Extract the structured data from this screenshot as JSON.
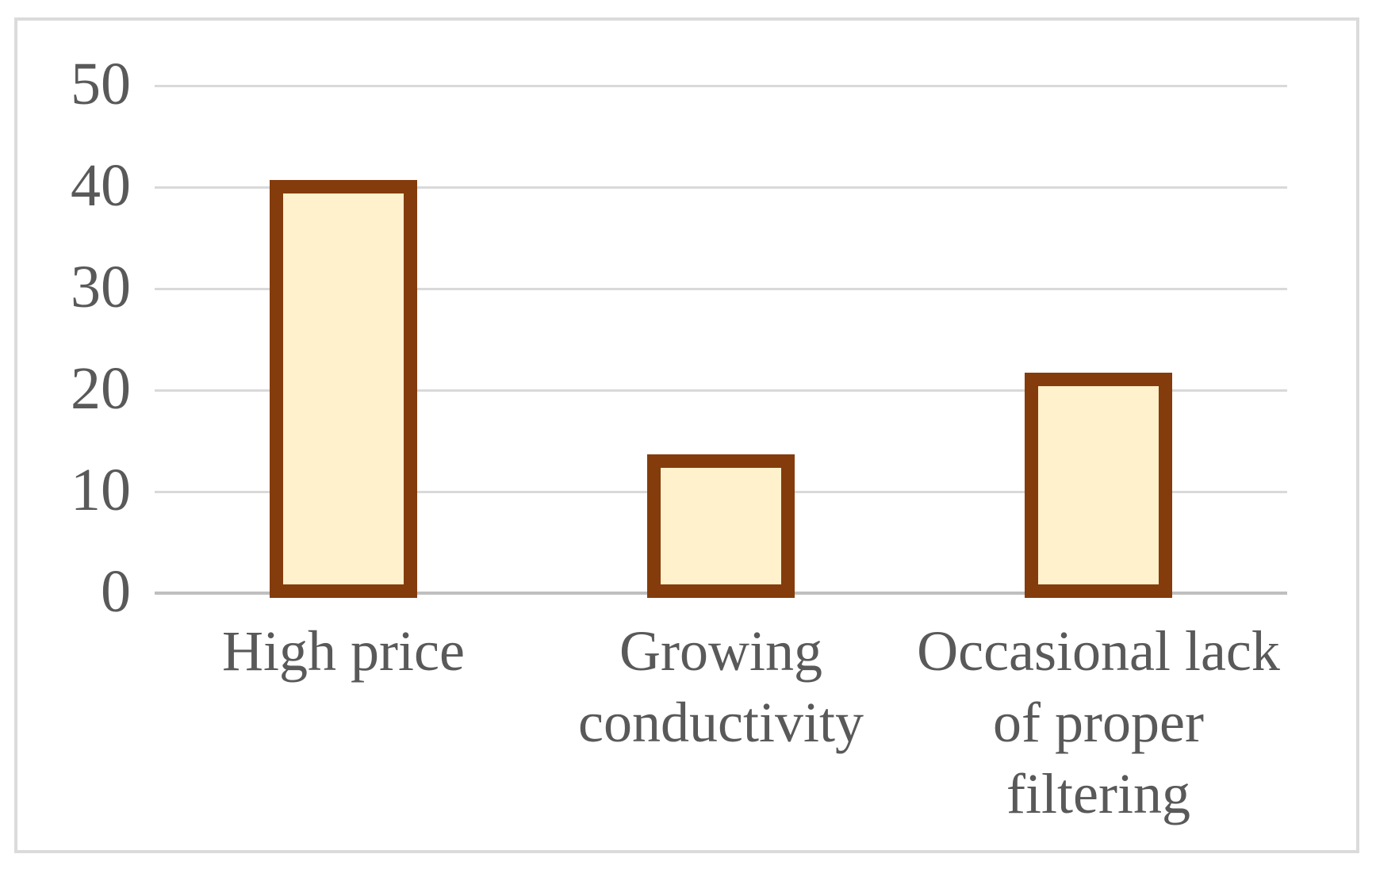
{
  "chart_data": {
    "type": "bar",
    "categories": [
      "High price",
      "Growing conductivity",
      "Occasional lack of proper filtering"
    ],
    "values": [
      40,
      13,
      21
    ],
    "yticks": [
      0,
      10,
      20,
      30,
      40,
      50
    ],
    "ytick_labels": [
      "0",
      "10",
      "20",
      "30",
      "40",
      "50"
    ],
    "ylim": [
      0,
      50
    ],
    "xlabel": "",
    "ylabel": "",
    "grid": true,
    "legend": false,
    "colors": {
      "bar_fill": "#fef1cc",
      "bar_border": "#843c0c",
      "gridline": "#d9d9d9",
      "axis_line": "#bfbfbf",
      "tick_text": "#595959",
      "chart_frame_border": "#dbdbdb",
      "background": "#ffffff"
    }
  }
}
